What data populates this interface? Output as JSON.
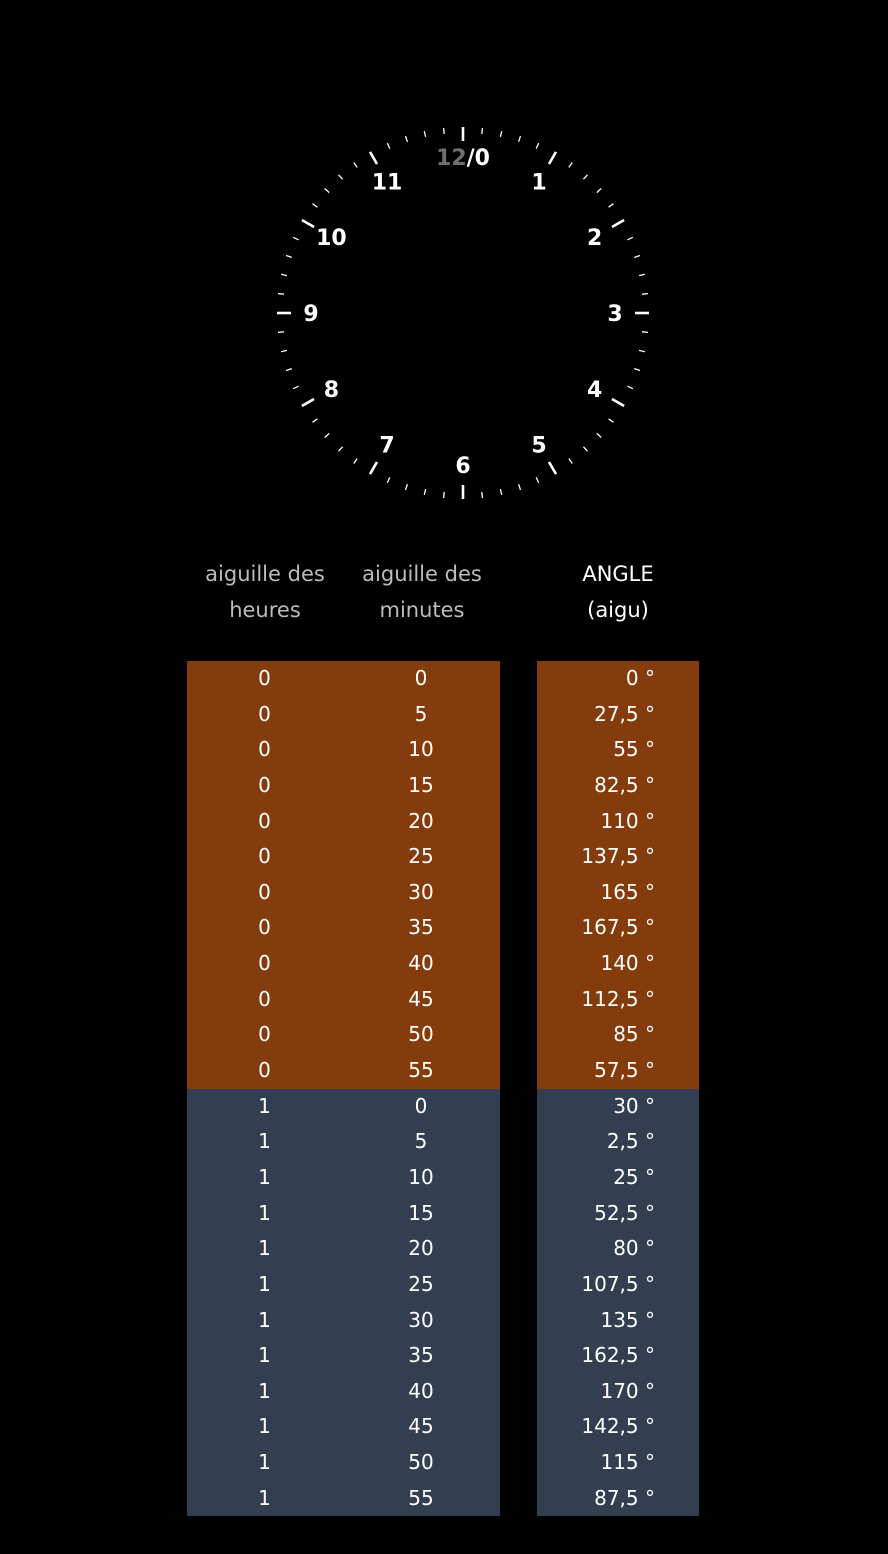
{
  "clock": {
    "top_label_dim": "12",
    "top_label_sep": "/0",
    "numbers": [
      "1",
      "2",
      "3",
      "4",
      "5",
      "6",
      "7",
      "8",
      "9",
      "10",
      "11"
    ]
  },
  "headers": {
    "hours": [
      "aiguille des",
      "heures"
    ],
    "minutes": [
      "aiguille des",
      "minutes"
    ],
    "angle": [
      "ANGLE",
      "(aigu)"
    ]
  },
  "colors": {
    "hour0_band": "#843c0c",
    "hour1_band": "#333f50",
    "background": "#000000"
  },
  "rows": [
    {
      "h": "0",
      "m": "0",
      "a": "0 °"
    },
    {
      "h": "0",
      "m": "5",
      "a": "27,5 °"
    },
    {
      "h": "0",
      "m": "10",
      "a": "55 °"
    },
    {
      "h": "0",
      "m": "15",
      "a": "82,5 °"
    },
    {
      "h": "0",
      "m": "20",
      "a": "110 °"
    },
    {
      "h": "0",
      "m": "25",
      "a": "137,5 °"
    },
    {
      "h": "0",
      "m": "30",
      "a": "165 °"
    },
    {
      "h": "0",
      "m": "35",
      "a": "167,5 °"
    },
    {
      "h": "0",
      "m": "40",
      "a": "140 °"
    },
    {
      "h": "0",
      "m": "45",
      "a": "112,5 °"
    },
    {
      "h": "0",
      "m": "50",
      "a": "85 °"
    },
    {
      "h": "0",
      "m": "55",
      "a": "57,5 °"
    },
    {
      "h": "1",
      "m": "0",
      "a": "30 °"
    },
    {
      "h": "1",
      "m": "5",
      "a": "2,5 °"
    },
    {
      "h": "1",
      "m": "10",
      "a": "25 °"
    },
    {
      "h": "1",
      "m": "15",
      "a": "52,5 °"
    },
    {
      "h": "1",
      "m": "20",
      "a": "80 °"
    },
    {
      "h": "1",
      "m": "25",
      "a": "107,5 °"
    },
    {
      "h": "1",
      "m": "30",
      "a": "135 °"
    },
    {
      "h": "1",
      "m": "35",
      "a": "162,5 °"
    },
    {
      "h": "1",
      "m": "40",
      "a": "170 °"
    },
    {
      "h": "1",
      "m": "45",
      "a": "142,5 °"
    },
    {
      "h": "1",
      "m": "50",
      "a": "115 °"
    },
    {
      "h": "1",
      "m": "55",
      "a": "87,5 °"
    }
  ]
}
